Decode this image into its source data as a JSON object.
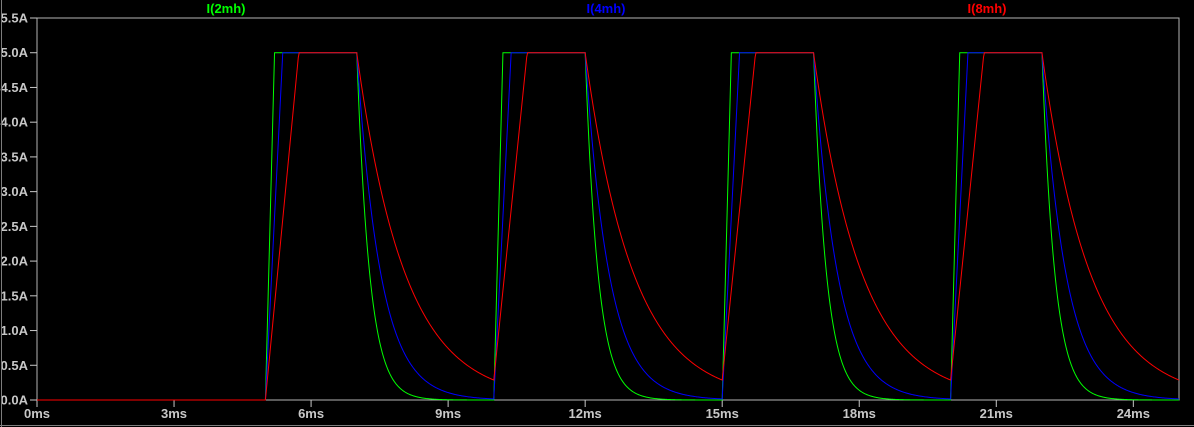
{
  "app": {
    "name": "waveform-viewer-plot-pane"
  },
  "chart_data": {
    "type": "line",
    "title": "",
    "legend_position": "top",
    "grid": false,
    "legend": [
      {
        "label": "I(2mh)",
        "color": "#00ff00"
      },
      {
        "label": "I(4mh)",
        "color": "#0000ff"
      },
      {
        "label": "I(8mh)",
        "color": "#ff0000"
      }
    ],
    "x_axis": {
      "unit": "ms",
      "min_ms": 0,
      "max_ms": 25,
      "tick_step_ms": 3,
      "tick_labels": [
        "0ms",
        "3ms",
        "6ms",
        "9ms",
        "12ms",
        "15ms",
        "18ms",
        "21ms",
        "24ms"
      ]
    },
    "y_axis": {
      "unit": "A",
      "min_a": 0,
      "max_a": 5.5,
      "tick_step_a": 0.5,
      "tick_labels": [
        "5.5A",
        "5.0A",
        "4.5A",
        "4.0A",
        "3.5A",
        "3.0A",
        "2.5A",
        "2.0A",
        "1.5A",
        "1.0A",
        "0.5A",
        "0.0A"
      ]
    },
    "waveform": {
      "shape": "periodic inductor-current pulses: zero until 5ms, linear rise to 5A, flat top, exponential decay; rise/decay speed scales with inductance",
      "amplitude_a": 5.0,
      "period_ms": 5.0,
      "first_rise_ms": 5.0,
      "on_time_ms": 2.0,
      "num_pulses": 4,
      "series": [
        {
          "name": "I(2mh)",
          "color": "#00ff00",
          "rise_time_ms": 0.2,
          "decay_tau_ms": 0.28
        },
        {
          "name": "I(4mh)",
          "color": "#0000ff",
          "rise_time_ms": 0.38,
          "decay_tau_ms": 0.52
        },
        {
          "name": "I(8mh)",
          "color": "#ff0000",
          "rise_time_ms": 0.73,
          "decay_tau_ms": 1.05
        }
      ]
    },
    "colors": {
      "background": "#000000",
      "plot_border": "#b4b4b4",
      "axis_text": "#c8c8c8",
      "pane_border": "#7d7d7d"
    }
  }
}
